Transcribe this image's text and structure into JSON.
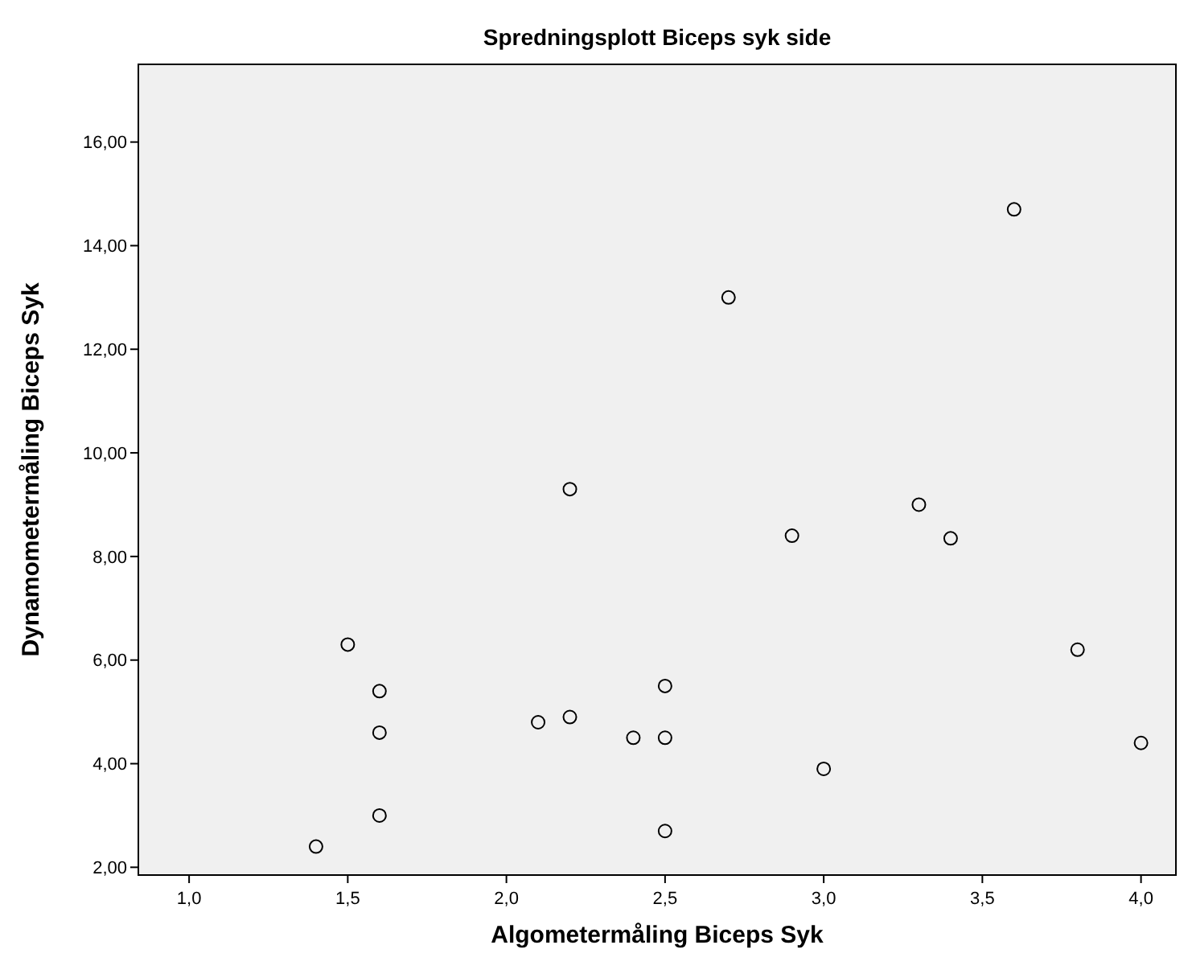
{
  "chart_data": {
    "type": "scatter",
    "title": "Spredningsplott Biceps syk side",
    "xlabel": "Algometermåling Biceps Syk",
    "ylabel": "Dynamometermåling Biceps Syk",
    "xlim": [
      0.84,
      4.11
    ],
    "ylim": [
      1.85,
      17.5
    ],
    "xticks": [
      {
        "value": 1,
        "label": "1,0"
      },
      {
        "value": 1.5,
        "label": "1,5"
      },
      {
        "value": 2,
        "label": "2,0"
      },
      {
        "value": 2.5,
        "label": "2,5"
      },
      {
        "value": 3,
        "label": "3,0"
      },
      {
        "value": 3.5,
        "label": "3,5"
      },
      {
        "value": 4,
        "label": "4,0"
      }
    ],
    "yticks": [
      {
        "value": 2,
        "label": "2,00"
      },
      {
        "value": 4,
        "label": "4,00"
      },
      {
        "value": 6,
        "label": "6,00"
      },
      {
        "value": 8,
        "label": "8,00"
      },
      {
        "value": 10,
        "label": "10,00"
      },
      {
        "value": 12,
        "label": "12,00"
      },
      {
        "value": 14,
        "label": "14,00"
      },
      {
        "value": 16,
        "label": "16,00"
      }
    ],
    "grid": false,
    "marker": "circle",
    "series": [
      {
        "color": "#000000",
        "x": [
          1.4,
          1.5,
          1.6,
          1.6,
          1.6,
          2.1,
          2.2,
          2.2,
          2.4,
          2.5,
          2.5,
          2.5,
          2.7,
          2.9,
          3.0,
          3.3,
          3.4,
          3.6,
          3.8,
          4.0
        ],
        "values": [
          2.4,
          6.3,
          5.4,
          4.6,
          3.0,
          4.8,
          4.9,
          9.3,
          4.5,
          5.5,
          4.5,
          2.7,
          13.0,
          8.4,
          3.9,
          9.0,
          8.35,
          14.7,
          6.2,
          4.4
        ]
      }
    ]
  }
}
